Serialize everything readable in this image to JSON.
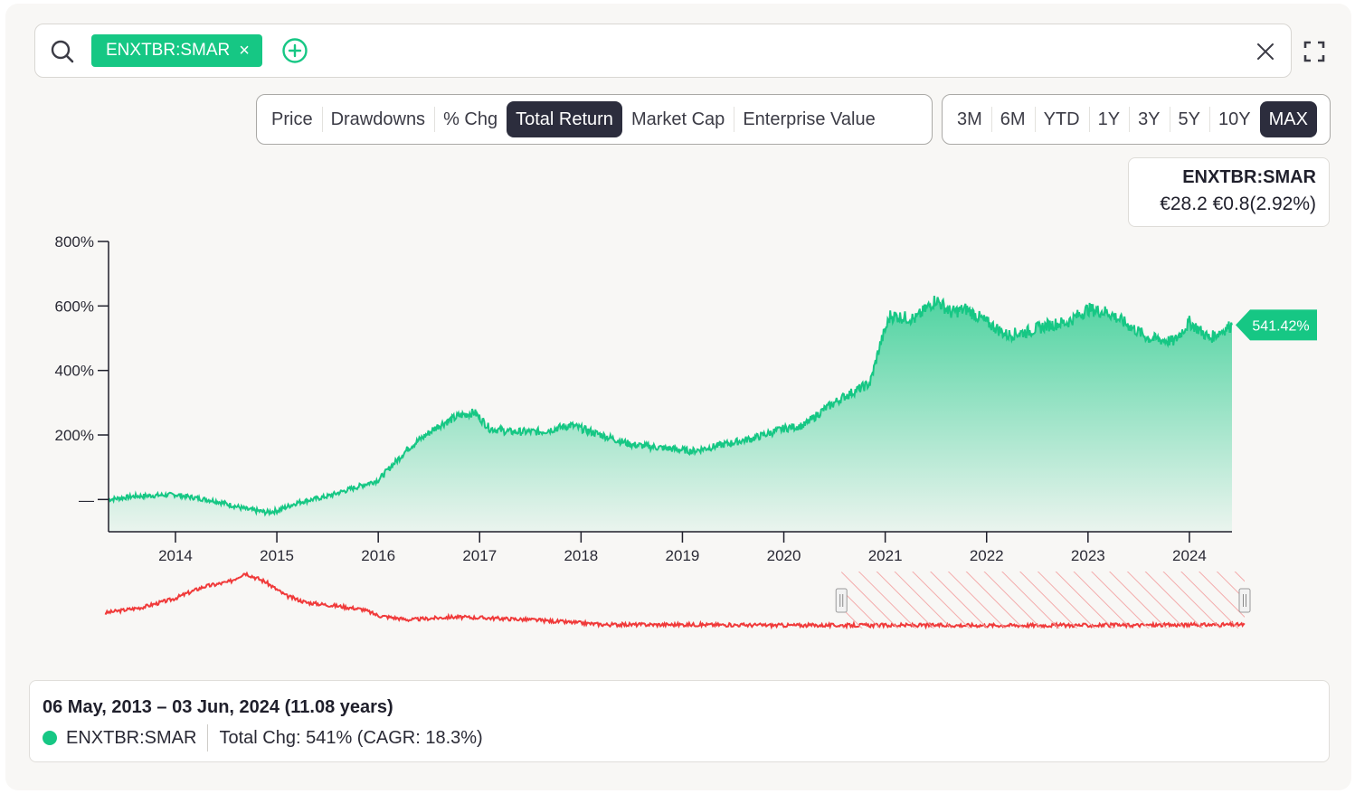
{
  "search": {
    "ticker_chip": "ENXTBR:SMAR",
    "chip_close": "×"
  },
  "metric_tabs": [
    "Price",
    "Drawdowns",
    "% Chg",
    "Total Return",
    "Market Cap",
    "Enterprise Value"
  ],
  "metric_active": "Total Return",
  "range_tabs": [
    "3M",
    "6M",
    "YTD",
    "1Y",
    "3Y",
    "5Y",
    "10Y",
    "MAX"
  ],
  "range_active": "MAX",
  "tooltip": {
    "ticker": "ENXTBR:SMAR",
    "value": "€28.2 €0.8(2.92%)"
  },
  "colors": {
    "series": "#16c784",
    "navigator": "#f03a3a",
    "active_tab": "#2c2d3d"
  },
  "chart_data": {
    "type": "area",
    "y_ticks": [
      "800%",
      "600%",
      "400%",
      "200%",
      "—"
    ],
    "y_tick_values": [
      800,
      600,
      400,
      200,
      0
    ],
    "ylim": [
      -100,
      800
    ],
    "x_ticks": [
      "2014",
      "2015",
      "2016",
      "2017",
      "2018",
      "2019",
      "2020",
      "2021",
      "2022",
      "2023",
      "2024"
    ],
    "xlim": [
      2013.34,
      2024.42
    ],
    "end_label": "541.42%",
    "series": [
      {
        "name": "ENXTBR:SMAR",
        "x": [
          2013.34,
          2013.6,
          2014.0,
          2014.4,
          2014.7,
          2014.9,
          2015.0,
          2015.2,
          2015.5,
          2015.8,
          2016.0,
          2016.3,
          2016.6,
          2016.8,
          2016.95,
          2017.1,
          2017.3,
          2017.6,
          2017.9,
          2018.2,
          2018.5,
          2018.8,
          2019.1,
          2019.4,
          2019.7,
          2020.0,
          2020.2,
          2020.4,
          2020.6,
          2020.85,
          2020.95,
          2021.05,
          2021.3,
          2021.5,
          2021.65,
          2021.8,
          2022.0,
          2022.2,
          2022.4,
          2022.6,
          2022.8,
          2023.0,
          2023.2,
          2023.4,
          2023.6,
          2023.85,
          2024.0,
          2024.2,
          2024.42
        ],
        "y": [
          0,
          10,
          15,
          -5,
          -30,
          -40,
          -35,
          -10,
          10,
          40,
          60,
          160,
          230,
          260,
          270,
          220,
          210,
          210,
          230,
          200,
          170,
          160,
          150,
          170,
          190,
          220,
          230,
          280,
          320,
          360,
          480,
          570,
          560,
          620,
          580,
          590,
          550,
          510,
          520,
          540,
          550,
          590,
          580,
          540,
          500,
          490,
          550,
          500,
          541
        ]
      }
    ],
    "navigator_series": {
      "x": [
        2013.34,
        2013.7,
        2014.0,
        2014.3,
        2014.55,
        2014.7,
        2014.9,
        2015.1,
        2015.3,
        2015.6,
        2015.85,
        2016.0,
        2016.3,
        2016.7,
        2017.0,
        2017.5,
        2017.9,
        2018.2,
        2019.0,
        2020.0,
        2020.5,
        2021.0,
        2022.0,
        2023.0,
        2024.42
      ],
      "y": [
        0,
        8,
        20,
        38,
        45,
        58,
        45,
        25,
        15,
        10,
        5,
        -4,
        -10,
        -6,
        -7,
        -10,
        -14,
        -17,
        -17,
        -18,
        -18,
        -18,
        -18,
        -18,
        -17
      ]
    },
    "navigator_selection": [
      2020.5,
      2024.42
    ]
  },
  "summary": {
    "range": "06 May, 2013 – 03 Jun, 2024 (11.08 years)",
    "ticker": "ENXTBR:SMAR",
    "change": "Total Chg: 541% (CAGR: 18.3%)"
  }
}
